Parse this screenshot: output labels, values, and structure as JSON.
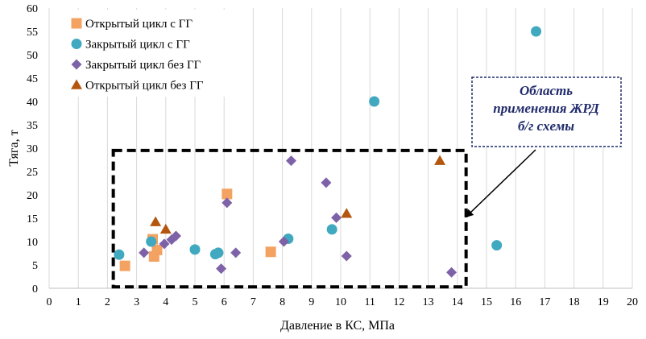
{
  "chart_data": {
    "type": "scatter",
    "xlabel": "Давление в КС, МПа",
    "ylabel": "Тяга, т",
    "xlim": [
      0,
      20
    ],
    "ylim": [
      0,
      60
    ],
    "x_ticks": [
      0,
      1,
      2,
      3,
      4,
      5,
      6,
      7,
      8,
      9,
      10,
      11,
      12,
      13,
      14,
      15,
      16,
      17,
      18,
      19,
      20
    ],
    "y_ticks": [
      0,
      5,
      10,
      15,
      20,
      25,
      30,
      35,
      40,
      45,
      50,
      55,
      60
    ],
    "grid": "vertical",
    "legend_position": "top-left",
    "series": [
      {
        "name": "Открытый цикл с ГГ",
        "marker": "square",
        "color": "#f4a261",
        "points": [
          [
            2.6,
            4.8
          ],
          [
            3.6,
            6.8
          ],
          [
            3.55,
            10.5
          ],
          [
            3.7,
            8.2
          ],
          [
            6.1,
            20.2
          ],
          [
            7.6,
            7.8
          ]
        ]
      },
      {
        "name": "Закрытый цикл с ГГ",
        "marker": "circle",
        "color": "#40a9c0",
        "points": [
          [
            2.4,
            7.2
          ],
          [
            3.5,
            10.0
          ],
          [
            5.0,
            8.3
          ],
          [
            5.7,
            7.3
          ],
          [
            5.8,
            7.6
          ],
          [
            8.2,
            10.6
          ],
          [
            9.7,
            12.6
          ],
          [
            11.15,
            40.0
          ],
          [
            15.35,
            9.2
          ],
          [
            16.7,
            55.0
          ]
        ]
      },
      {
        "name": "Закрытый цикл без ГГ",
        "marker": "diamond",
        "color": "#7e62a8",
        "points": [
          [
            3.25,
            7.6
          ],
          [
            3.95,
            9.5
          ],
          [
            4.2,
            10.4
          ],
          [
            4.35,
            11.2
          ],
          [
            5.9,
            4.2
          ],
          [
            6.1,
            18.3
          ],
          [
            6.4,
            7.6
          ],
          [
            8.05,
            10.0
          ],
          [
            8.3,
            27.3
          ],
          [
            9.5,
            22.6
          ],
          [
            9.85,
            15.1
          ],
          [
            10.2,
            6.9
          ],
          [
            13.8,
            3.4
          ]
        ]
      },
      {
        "name": "Открытый цикл без ГГ",
        "marker": "triangle",
        "color": "#b5560f",
        "points": [
          [
            3.65,
            14.2
          ],
          [
            4.0,
            12.6
          ],
          [
            10.2,
            16.0
          ],
          [
            13.4,
            27.3
          ]
        ]
      }
    ],
    "annotation": {
      "text_lines": [
        "Область",
        "применения ЖРД",
        "б/г схемы"
      ],
      "region": {
        "x": [
          2.2,
          14.3
        ],
        "y": [
          0.3,
          29.5
        ]
      },
      "arrow_target": {
        "x": 14.2,
        "y": 15.2
      }
    }
  }
}
